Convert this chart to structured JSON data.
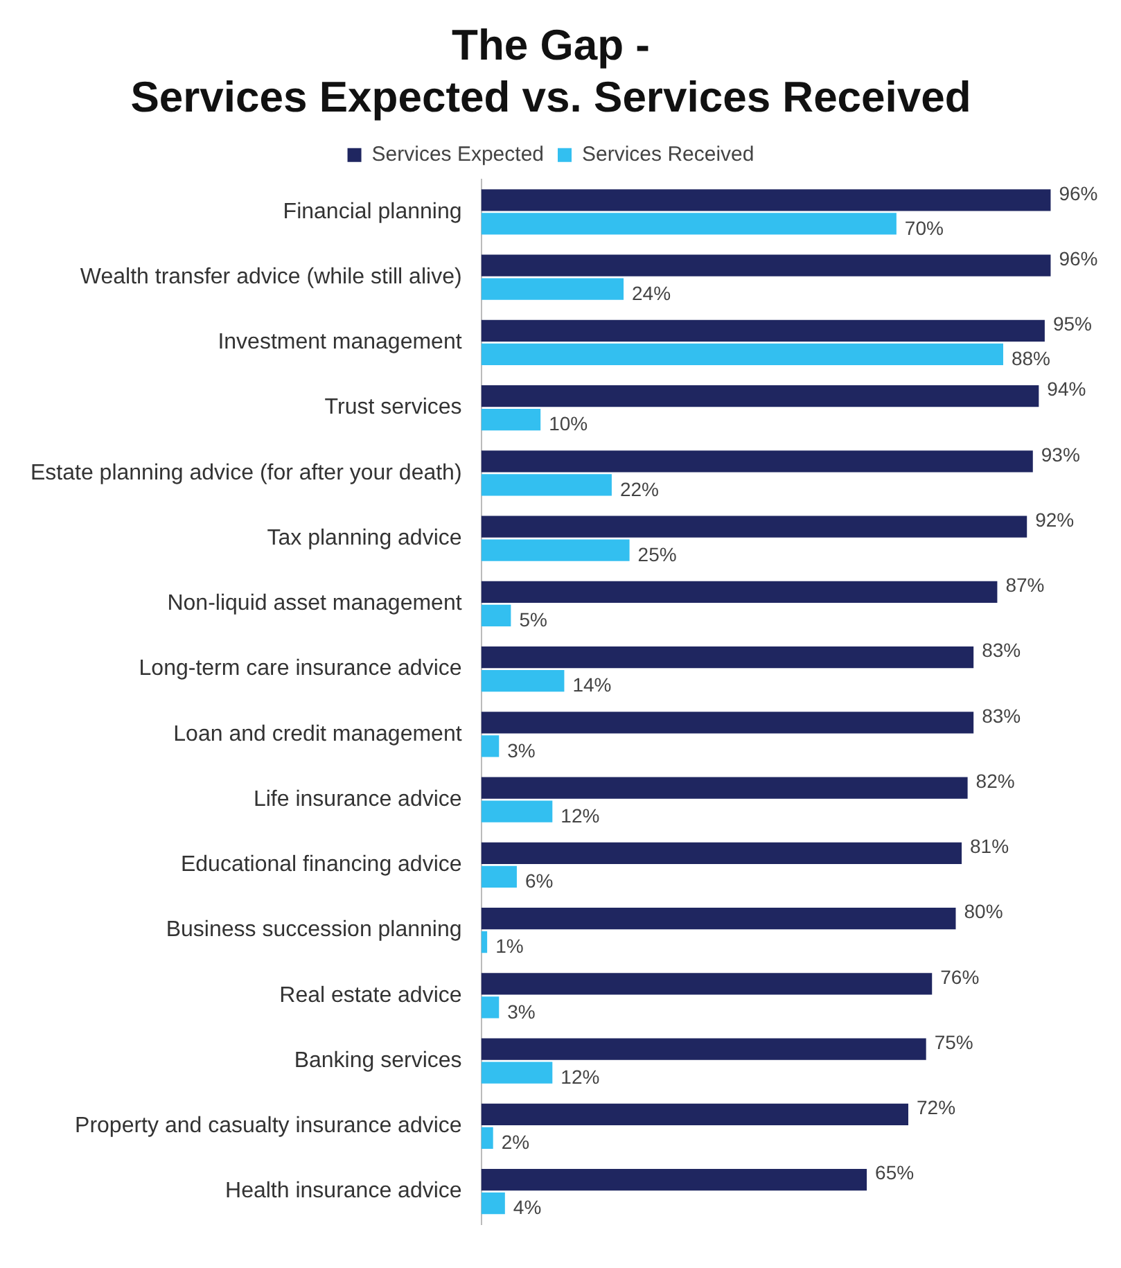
{
  "chart_data": {
    "type": "bar",
    "orientation": "horizontal",
    "title": "The Gap -\nServices Expected vs. Services Received",
    "legend": "top",
    "categories": [
      "Financial planning",
      "Wealth transfer advice (while still alive)",
      "Investment management",
      "Trust services",
      "Estate planning advice (for after your death)",
      "Tax planning advice",
      "Non-liquid asset management",
      "Long-term care insurance advice",
      "Loan and credit management",
      "Life insurance advice",
      "Educational financing advice",
      "Business succession planning",
      "Real estate advice",
      "Banking services",
      "Property and casualty insurance advice",
      "Health insurance advice"
    ],
    "series": [
      {
        "name": "Services Expected",
        "color": "#1f2660",
        "values": [
          96,
          96,
          95,
          94,
          93,
          92,
          87,
          83,
          83,
          82,
          81,
          80,
          76,
          75,
          72,
          65
        ],
        "value_labels": [
          "96%",
          "96%",
          "95%",
          "94%",
          "93%",
          "92%",
          "87%",
          "83%",
          "83%",
          "82%",
          "81%",
          "80%",
          "76%",
          "75%",
          "72%",
          "65%"
        ]
      },
      {
        "name": "Services Received",
        "color": "#33bff0",
        "values": [
          70,
          24,
          88,
          10,
          22,
          25,
          5,
          14,
          3,
          12,
          6,
          1,
          3,
          12,
          2,
          4
        ],
        "value_labels": [
          "70%",
          "24%",
          "88%",
          "10%",
          "22%",
          "25%",
          "5%",
          "14%",
          "3%",
          "12%",
          "6%",
          "1%",
          "3%",
          "12%",
          "2%",
          "4%"
        ]
      }
    ]
  }
}
